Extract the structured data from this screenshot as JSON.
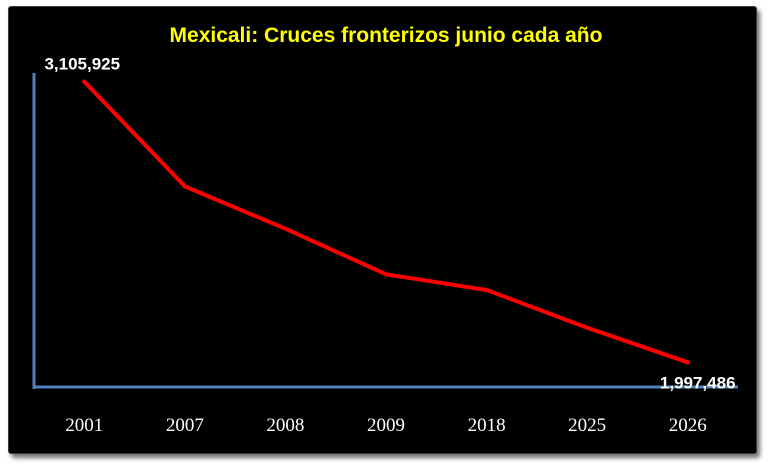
{
  "chart_data": {
    "type": "line",
    "title": "Mexicali: Cruces fronterizos junio cada año",
    "xlabel": "",
    "ylabel": "",
    "categories": [
      "2001",
      "2007",
      "2008",
      "2009",
      "2018",
      "2025",
      "2026"
    ],
    "series": [
      {
        "values": [
          3105925,
          2692000,
          2525000,
          2345000,
          2283000,
          2134000,
          1997486
        ],
        "color": "#ff0000"
      }
    ],
    "data_labels": [
      {
        "index": 0,
        "text": "3,105,925"
      },
      {
        "index": 6,
        "text": "1,997,486"
      }
    ],
    "ylim": [
      1900000,
      3140000
    ],
    "grid": false,
    "legend": "none",
    "axis_color": "#4f81bd",
    "background": "#000000",
    "title_color": "#ffff00"
  }
}
